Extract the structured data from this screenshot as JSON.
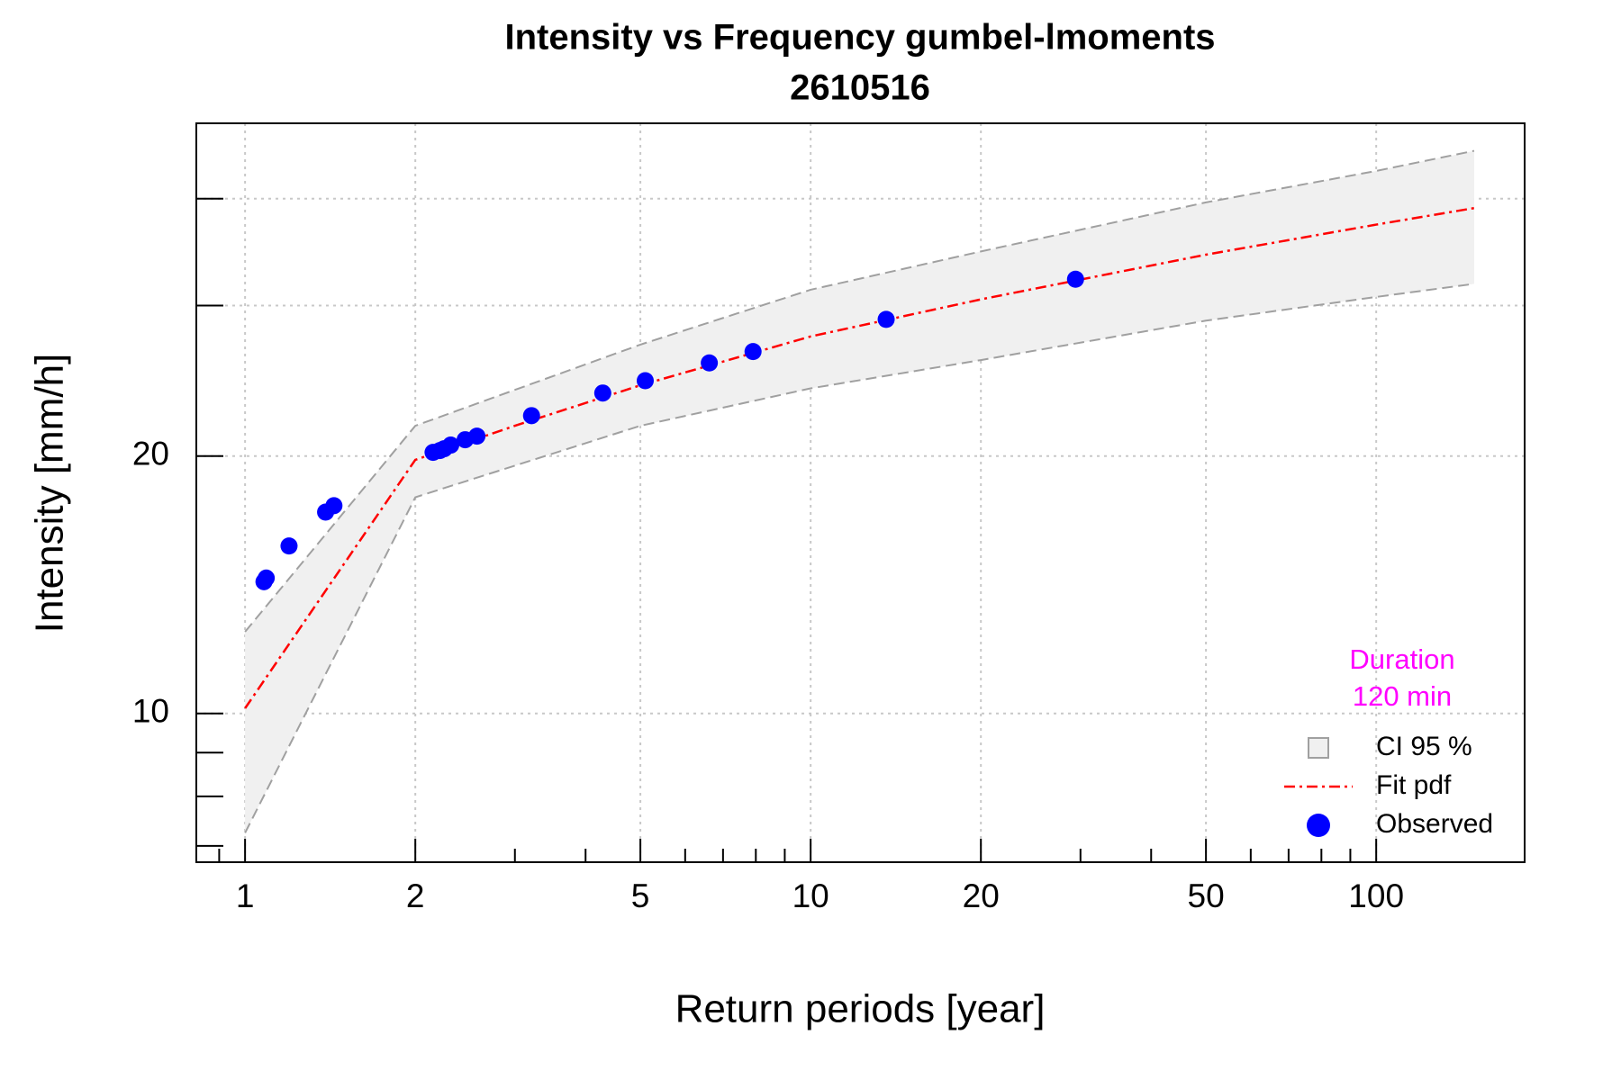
{
  "chart_data": {
    "type": "line",
    "title": "Intensity vs Frequency gumbel-lmoments",
    "subtitle": "2610516",
    "xlabel": "Return periods [year]",
    "ylabel": "Intensity [mm/h]",
    "xlog": true,
    "ylog": true,
    "xlim": [
      0.82,
      183
    ],
    "ylim": [
      6.7,
      49
    ],
    "xticks": [
      1,
      2,
      5,
      10,
      20,
      50,
      100
    ],
    "xminorticks": [
      0.9,
      3,
      4,
      6,
      7,
      8,
      9,
      30,
      40,
      60,
      70,
      80,
      90
    ],
    "yticks": [
      10,
      20
    ],
    "yminorticks": [
      7,
      8,
      9,
      30,
      40
    ],
    "ygrid": [
      30,
      40
    ],
    "grid": true,
    "legend": "lower right",
    "annotation": [
      "Duration",
      "120 min"
    ],
    "annotation_color": "#ff00ff",
    "series": [
      {
        "name": "CI 95 %",
        "type": "band",
        "color": "#f0f0f0",
        "edgecolor": "#a0a0a0",
        "x": [
          1,
          2,
          5,
          10,
          20,
          50,
          100,
          149
        ],
        "upper": [
          12.46,
          21.7,
          27.0,
          31.3,
          34.7,
          39.6,
          43.1,
          45.5
        ],
        "lower": [
          7.25,
          17.9,
          21.7,
          24.0,
          25.9,
          28.8,
          30.7,
          31.8
        ]
      },
      {
        "name": "Fit pdf",
        "type": "line",
        "color": "#ff0000",
        "x": [
          1,
          2,
          3,
          5,
          10,
          20,
          50,
          100,
          149
        ],
        "values": [
          10.14,
          19.8,
          21.7,
          24.2,
          27.6,
          30.5,
          34.4,
          37.3,
          39.0
        ]
      },
      {
        "name": "Observed",
        "type": "scatter",
        "color": "#0000ff",
        "x": [
          1.08,
          1.09,
          1.196,
          1.388,
          1.436,
          2.15,
          2.21,
          2.25,
          2.31,
          2.45,
          2.57,
          3.21,
          4.29,
          5.1,
          6.62,
          7.91,
          13.6,
          29.4
        ],
        "values": [
          14.26,
          14.4,
          15.7,
          17.2,
          17.5,
          20.2,
          20.3,
          20.4,
          20.6,
          20.9,
          21.1,
          22.3,
          23.7,
          24.5,
          25.7,
          26.5,
          28.9,
          32.2
        ]
      }
    ]
  }
}
